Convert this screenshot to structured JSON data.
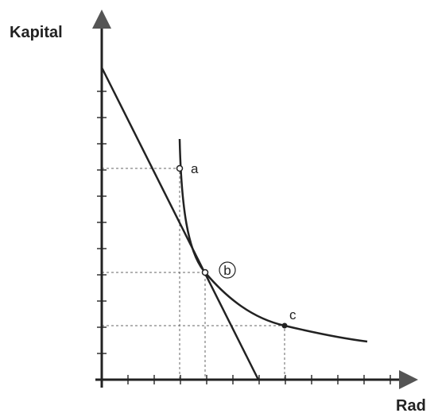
{
  "axes": {
    "y_label": "Kapital",
    "x_label": "Rad"
  },
  "points": [
    {
      "label": "a"
    },
    {
      "label": "b"
    },
    {
      "label": "c"
    }
  ]
}
